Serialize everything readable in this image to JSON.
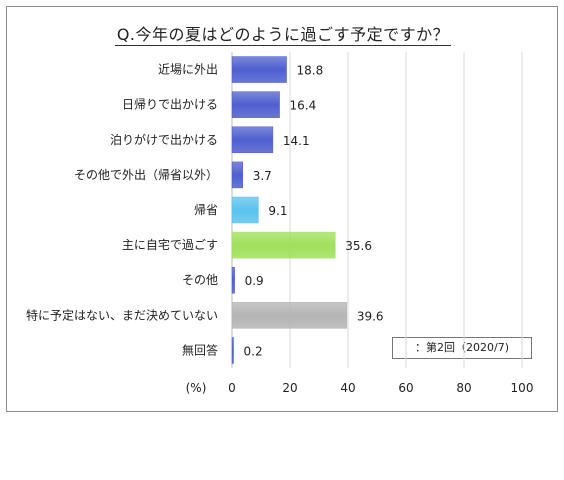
{
  "title": "Q.今年の夏はどのように過ごす予定ですか？",
  "note": "：第2回（2020/7)",
  "chart_data": {
    "type": "bar",
    "orientation": "horizontal",
    "categories": [
      "近場に外出",
      "日帰りで出かける",
      "泊りがけで出かける",
      "その他で外出（帰省以外）",
      "帰省",
      "主に自宅で過ごす",
      "その他",
      "特に予定はない、まだ決めていない",
      "無回答"
    ],
    "values": [
      18.8,
      16.4,
      14.1,
      3.7,
      9.1,
      35.6,
      0.9,
      39.6,
      0.2
    ],
    "value_labels": [
      "18.8",
      "16.4",
      "14.1",
      "3.7",
      "9.1",
      "35.6",
      "0.9",
      "39.6",
      "0.2"
    ],
    "bar_colors": [
      "#4f5fcf",
      "#4f5fcf",
      "#4f5fcf",
      "#4f5fcf",
      "#5bc2ef",
      "#9fe05a",
      "#4f5fcf",
      "#b4b4b4",
      "#4f5fcf"
    ],
    "xlim": [
      0,
      100
    ],
    "x_ticks": [
      "0",
      "20",
      "40",
      "60",
      "80",
      "100"
    ],
    "x_unit_label": "(%)",
    "grid": true
  }
}
